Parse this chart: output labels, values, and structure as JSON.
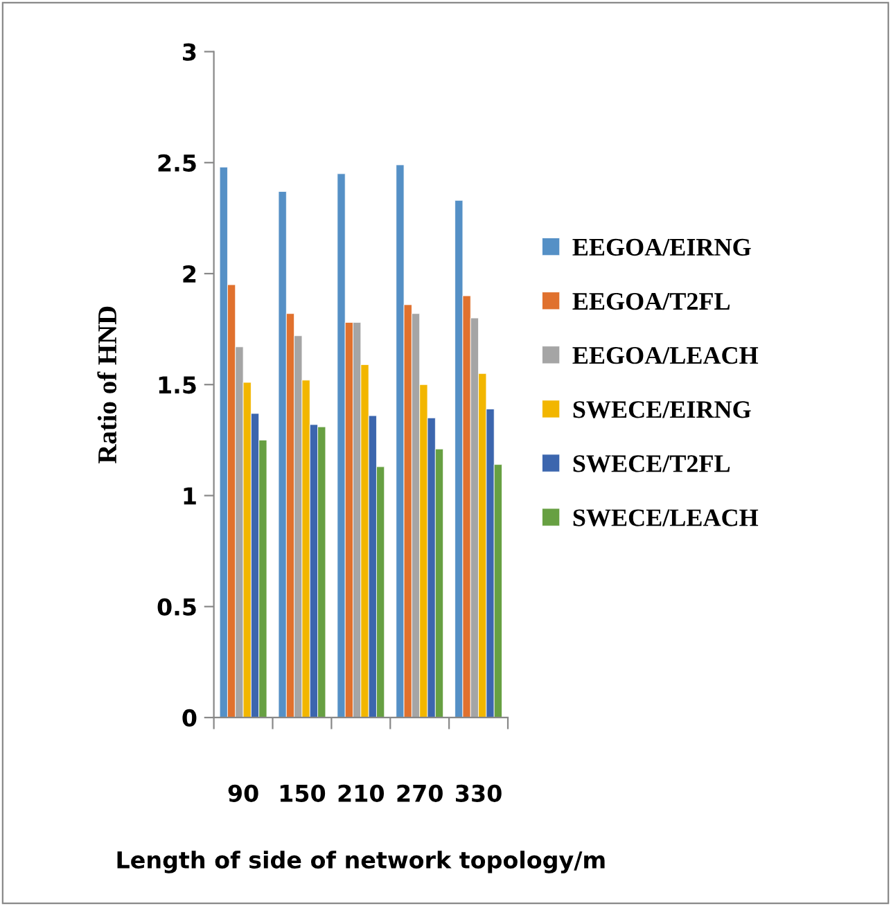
{
  "chart_data": {
    "type": "bar",
    "xlabel": "Length of side of network topology/m",
    "ylabel": "Ratio of HND",
    "categories": [
      "90",
      "150",
      "210",
      "270",
      "330"
    ],
    "series": [
      {
        "name": "EEGOA/EIRNG",
        "color": "#5590c6",
        "values": [
          2.48,
          2.37,
          2.45,
          2.49,
          2.33
        ]
      },
      {
        "name": "EEGOA/T2FL",
        "color": "#e0712e",
        "values": [
          1.95,
          1.82,
          1.78,
          1.86,
          1.9
        ]
      },
      {
        "name": "EEGOA/LEACH",
        "color": "#a5a5a5",
        "values": [
          1.67,
          1.72,
          1.78,
          1.82,
          1.8
        ]
      },
      {
        "name": "SWECE/EIRNG",
        "color": "#f2b600",
        "values": [
          1.51,
          1.52,
          1.59,
          1.5,
          1.55
        ]
      },
      {
        "name": "SWECE/T2FL",
        "color": "#3c66ae",
        "values": [
          1.37,
          1.32,
          1.36,
          1.35,
          1.39
        ]
      },
      {
        "name": "SWECE/LEACH",
        "color": "#67a042",
        "values": [
          1.25,
          1.31,
          1.13,
          1.21,
          1.14
        ]
      }
    ],
    "ylim": [
      0,
      3
    ],
    "yticks": [
      0,
      0.5,
      1,
      1.5,
      2,
      2.5,
      3
    ],
    "grid": false,
    "legend": "right"
  }
}
